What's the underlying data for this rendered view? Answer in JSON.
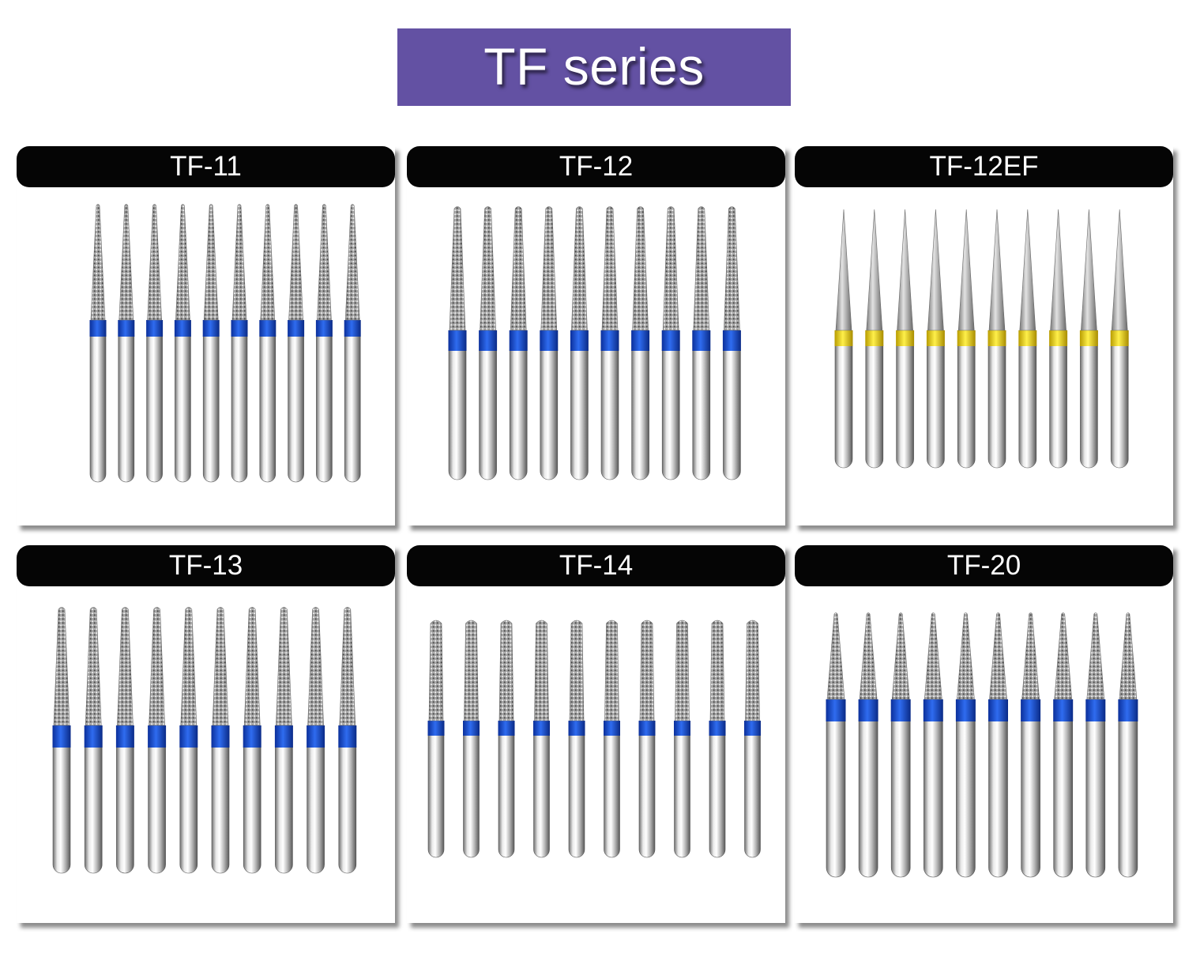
{
  "header": {
    "title": "TF series"
  },
  "colors": {
    "banner": "#6351a3",
    "label_bg": "#050505",
    "blue_band": "#1d55d8",
    "yellow_band": "#f0dc1e"
  },
  "panels": [
    {
      "label": "TF-11",
      "band": "blue",
      "tip": "needle",
      "count": 10
    },
    {
      "label": "TF-12",
      "band": "blue",
      "tip": "taper",
      "count": 10
    },
    {
      "label": "TF-12EF",
      "band": "yellow",
      "tip": "smooth",
      "count": 10
    },
    {
      "label": "TF-13",
      "band": "blue",
      "tip": "taper",
      "count": 10
    },
    {
      "label": "TF-14",
      "band": "blue",
      "tip": "flat",
      "count": 10
    },
    {
      "label": "TF-20",
      "band": "blue",
      "tip": "needle",
      "count": 10
    }
  ]
}
